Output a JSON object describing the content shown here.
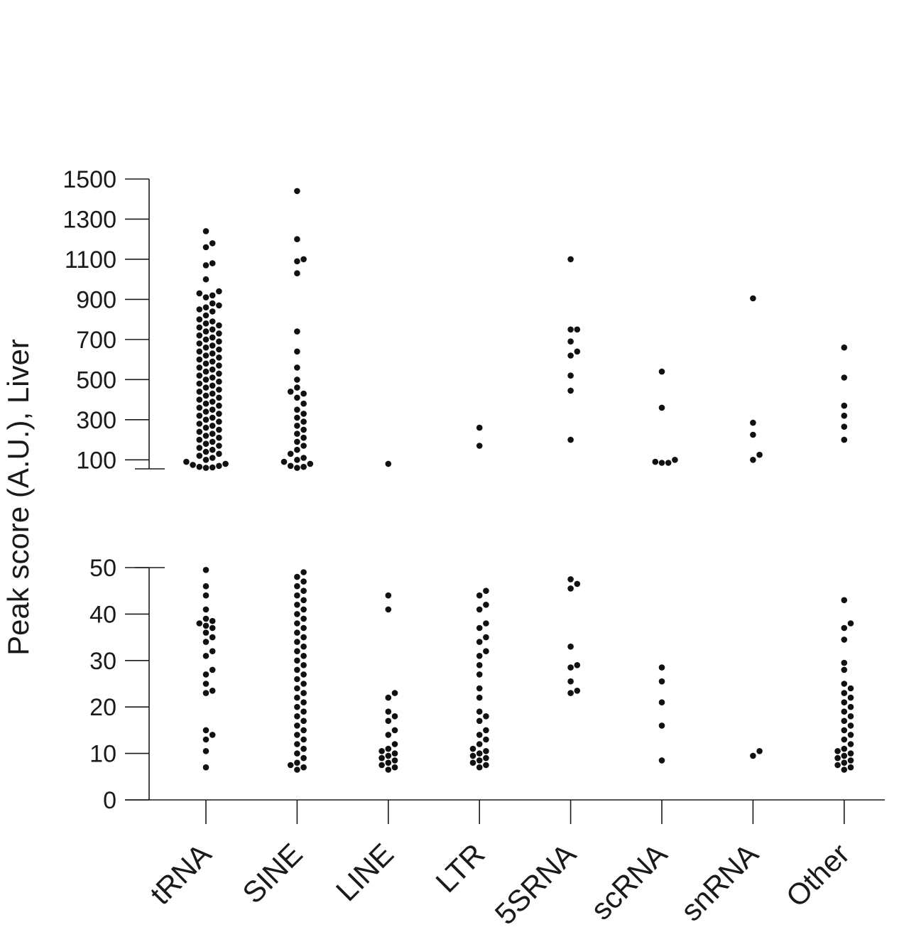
{
  "chart_data": {
    "type": "scatter",
    "subtype": "beeswarm-split-axis",
    "ylabel": "Peak score (A.U.), Liver",
    "categories": [
      "tRNA",
      "SINE",
      "LINE",
      "LTR",
      "5SRNA",
      "scRNA",
      "snRNA",
      "Other"
    ],
    "upper_axis": {
      "ylim": [
        55,
        1500
      ],
      "ticks": [
        100,
        300,
        500,
        700,
        900,
        1100,
        1300,
        1500
      ]
    },
    "lower_axis": {
      "ylim": [
        0,
        50
      ],
      "ticks": [
        0,
        10,
        20,
        30,
        40,
        50
      ]
    },
    "series": [
      {
        "name": "tRNA",
        "upper_values": [
          1240,
          1180,
          1160,
          1080,
          1070,
          1000,
          940,
          930,
          920,
          910,
          880,
          870,
          860,
          850,
          840,
          820,
          800,
          790,
          780,
          770,
          760,
          750,
          740,
          730,
          720,
          710,
          700,
          690,
          680,
          670,
          660,
          650,
          640,
          630,
          620,
          610,
          600,
          590,
          580,
          570,
          560,
          550,
          540,
          530,
          520,
          510,
          500,
          490,
          480,
          470,
          460,
          450,
          440,
          430,
          420,
          410,
          400,
          390,
          380,
          370,
          360,
          350,
          340,
          330,
          320,
          310,
          300,
          290,
          280,
          270,
          260,
          250,
          240,
          230,
          220,
          210,
          200,
          190,
          180,
          170,
          160,
          150,
          140,
          130,
          120,
          110,
          100,
          90,
          80,
          75,
          70,
          65,
          62,
          60
        ],
        "lower_values": [
          49.5,
          46,
          44,
          41,
          39,
          38.5,
          38,
          37.5,
          37,
          36,
          35,
          34,
          32,
          31,
          28,
          27,
          25,
          23.5,
          23,
          15,
          14,
          13,
          10.5,
          7
        ]
      },
      {
        "name": "SINE",
        "upper_values": [
          1440,
          1200,
          1100,
          1090,
          1030,
          740,
          640,
          560,
          500,
          460,
          440,
          430,
          410,
          380,
          350,
          330,
          310,
          290,
          270,
          250,
          230,
          210,
          190,
          170,
          150,
          130,
          110,
          100,
          90,
          80,
          70,
          65,
          60
        ],
        "lower_values": [
          49,
          48,
          47,
          46,
          45,
          44,
          43,
          42,
          41,
          40,
          39,
          38,
          37,
          36,
          35,
          34,
          33,
          32,
          31,
          30,
          29,
          28,
          27,
          26,
          25,
          24,
          23,
          22,
          21,
          20,
          19,
          18,
          17,
          16,
          15,
          14,
          13,
          12,
          11,
          10,
          9,
          8,
          7.5,
          7,
          6.5
        ]
      },
      {
        "name": "LINE",
        "upper_values": [
          80
        ],
        "lower_values": [
          44,
          41,
          23,
          22,
          19,
          18,
          17,
          15,
          14,
          12,
          11,
          10.5,
          10,
          9.5,
          9,
          8.5,
          8,
          7.5,
          7,
          6.5
        ]
      },
      {
        "name": "LTR",
        "upper_values": [
          260,
          170
        ],
        "lower_values": [
          45,
          44,
          42,
          41,
          38,
          37,
          35,
          34,
          32,
          31,
          29,
          27,
          24,
          22,
          19,
          18,
          17,
          15,
          14,
          13,
          12,
          11,
          10.5,
          10,
          9.5,
          9,
          8.5,
          8,
          7.5,
          7
        ]
      },
      {
        "name": "5SRNA",
        "upper_values": [
          1100,
          750,
          750,
          690,
          640,
          620,
          520,
          445,
          200
        ],
        "lower_values": [
          47.5,
          46.5,
          45.5,
          33,
          29,
          28.5,
          25.5,
          23.5,
          23
        ]
      },
      {
        "name": "scRNA",
        "upper_values": [
          540,
          360,
          100,
          90,
          85,
          85
        ],
        "lower_values": [
          28.5,
          25.5,
          21,
          16,
          8.5
        ]
      },
      {
        "name": "snRNA",
        "upper_values": [
          905,
          285,
          225,
          125,
          100
        ],
        "lower_values": [
          10.5,
          9.5
        ]
      },
      {
        "name": "Other",
        "upper_values": [
          660,
          510,
          370,
          320,
          265,
          200
        ],
        "lower_values": [
          43,
          38,
          37,
          34.5,
          29.5,
          28,
          25,
          24,
          23,
          22,
          21,
          20,
          19,
          18,
          17,
          16,
          15,
          14,
          13,
          12,
          11,
          10.5,
          10,
          9.5,
          9,
          8.5,
          8,
          7.5,
          7,
          6.5
        ]
      }
    ]
  }
}
